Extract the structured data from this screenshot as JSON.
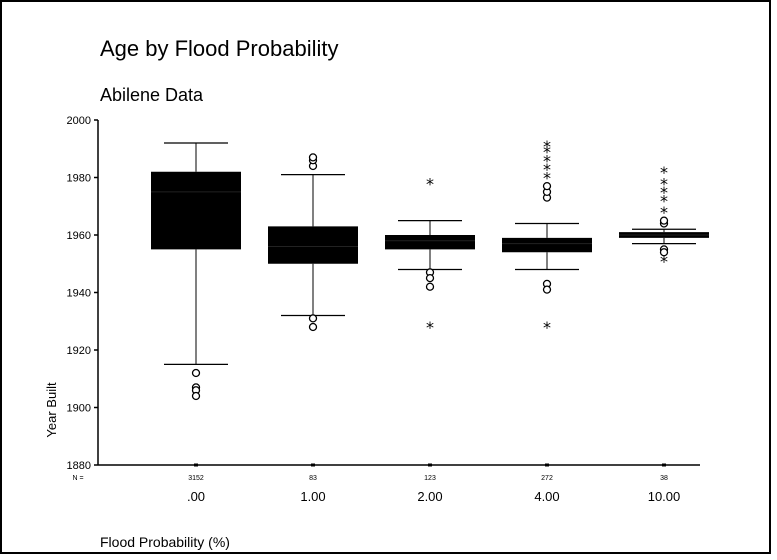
{
  "chart_data": {
    "type": "box",
    "title": "Age by Flood Probability",
    "subtitle": "Abilene Data",
    "xlabel": "Flood Probability (%)",
    "ylabel": "Year Built",
    "ylim": [
      1880,
      2000
    ],
    "yticks": [
      1880,
      1900,
      1920,
      1940,
      1960,
      1980,
      2000
    ],
    "n_prefix": "N =",
    "categories": [
      {
        "label": ".00",
        "n": "3152",
        "whisker_low": 1915,
        "q1": 1955,
        "median": 1975,
        "q3": 1982,
        "whisker_high": 1992,
        "outliers": [
          1912,
          1907,
          1906,
          1904
        ],
        "extremes": []
      },
      {
        "label": "1.00",
        "n": "83",
        "whisker_low": 1932,
        "q1": 1950,
        "median": 1956,
        "q3": 1963,
        "whisker_high": 1981,
        "outliers": [
          1984,
          1986,
          1987,
          1931,
          1928
        ],
        "extremes": []
      },
      {
        "label": "2.00",
        "n": "123",
        "whisker_low": 1948,
        "q1": 1955,
        "median": 1958,
        "q3": 1960,
        "whisker_high": 1965,
        "outliers": [
          1947,
          1945,
          1942
        ],
        "extremes": [
          1978,
          1928
        ]
      },
      {
        "label": "4.00",
        "n": "272",
        "whisker_low": 1948,
        "q1": 1954,
        "median": 1957,
        "q3": 1959,
        "whisker_high": 1964,
        "outliers": [
          1973,
          1975,
          1977,
          1943,
          1941
        ],
        "extremes": [
          1980,
          1983,
          1986,
          1989,
          1991,
          1928
        ]
      },
      {
        "label": "10.00",
        "n": "38",
        "whisker_low": 1957,
        "q1": 1959,
        "median": 1960,
        "q3": 1961,
        "whisker_high": 1962,
        "outliers": [
          1964,
          1965,
          1955,
          1954
        ],
        "extremes": [
          1968,
          1972,
          1975,
          1978,
          1982,
          1951
        ]
      }
    ]
  }
}
